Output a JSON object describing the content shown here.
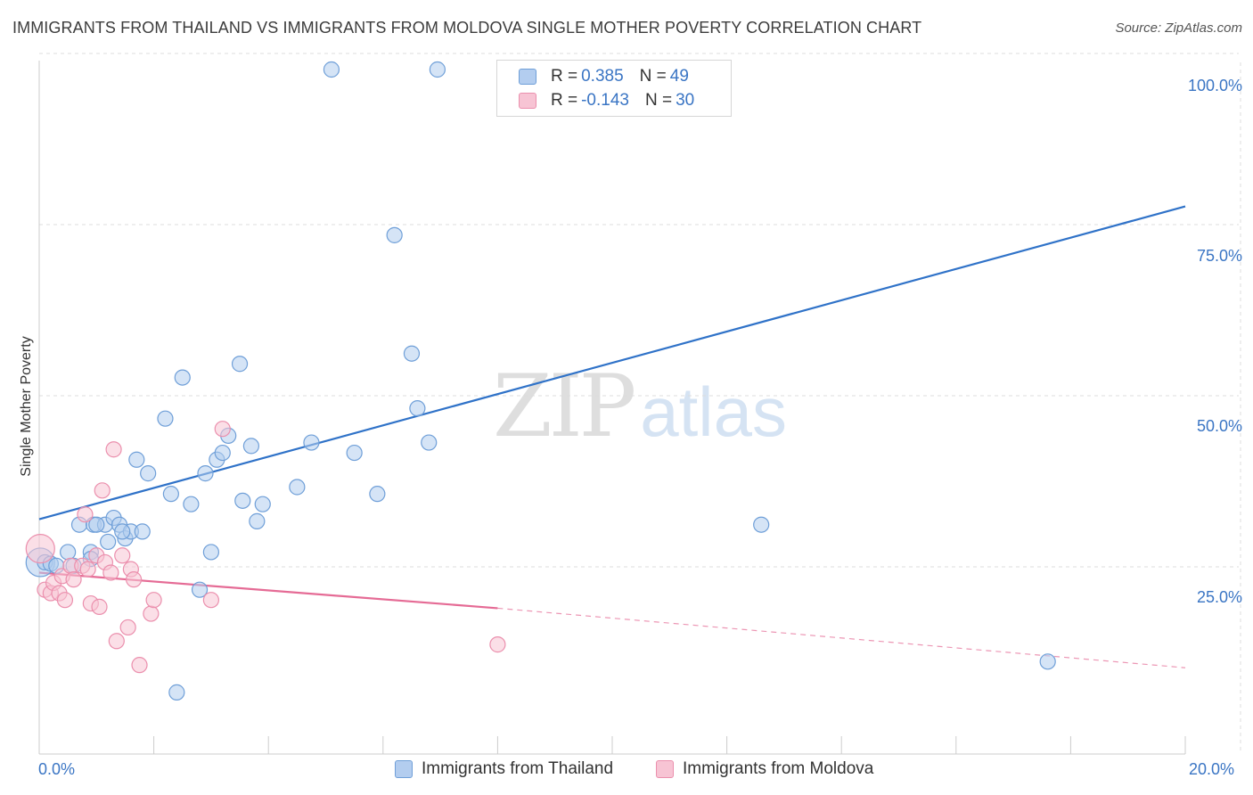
{
  "title": "IMMIGRANTS FROM THAILAND VS IMMIGRANTS FROM MOLDOVA SINGLE MOTHER POVERTY CORRELATION CHART",
  "source": "Source: ZipAtlas.com",
  "watermark": {
    "zip": "ZIP",
    "atlas": "atlas"
  },
  "legend": {
    "rows": [
      {
        "r_label": "R =",
        "r_value": "0.385",
        "n_label": "N =",
        "n_value": "49"
      },
      {
        "r_label": "R =",
        "r_value": "-0.143",
        "n_label": "N =",
        "n_value": "30"
      }
    ]
  },
  "colors": {
    "thailand_fill": "#b3cdef",
    "thailand_stroke": "#6f9fd8",
    "thailand_line": "#2f72c8",
    "moldova_fill": "#f7c4d4",
    "moldova_stroke": "#eb8fad",
    "moldova_line": "#e56b95",
    "grid": "#dcdcdc",
    "tick_text": "#3a75c4"
  },
  "chart_data": {
    "type": "scatter",
    "title": "IMMIGRANTS FROM THAILAND VS IMMIGRANTS FROM MOLDOVA SINGLE MOTHER POVERTY CORRELATION CHART",
    "xlabel": "",
    "ylabel": "Single Mother Poverty",
    "xlim": [
      0,
      20
    ],
    "ylim": [
      0,
      100
    ],
    "x_tick_labels": [
      "0.0%",
      "20.0%"
    ],
    "y_ticks": [
      25,
      50,
      75,
      100
    ],
    "y_tick_labels": [
      "25.0%",
      "50.0%",
      "75.0%",
      "100.0%"
    ],
    "grid": true,
    "series": [
      {
        "name": "Immigrants from Thailand",
        "r": 0.385,
        "n": 49,
        "points": [
          [
            0.02,
            28.0,
            "large"
          ],
          [
            0.1,
            28.0
          ],
          [
            0.2,
            27.8
          ],
          [
            0.5,
            29.5
          ],
          [
            0.9,
            29.5
          ],
          [
            0.7,
            33.5
          ],
          [
            0.95,
            33.5
          ],
          [
            1.15,
            33.5
          ],
          [
            1.3,
            34.5
          ],
          [
            1.4,
            33.5
          ],
          [
            1.2,
            31.0
          ],
          [
            1.5,
            31.5
          ],
          [
            1.6,
            32.5
          ],
          [
            1.8,
            32.5
          ],
          [
            1.9,
            41.0
          ],
          [
            1.7,
            43.0
          ],
          [
            2.2,
            49.0
          ],
          [
            2.3,
            38.0
          ],
          [
            2.5,
            55.0
          ],
          [
            2.65,
            36.5
          ],
          [
            2.9,
            41.0
          ],
          [
            3.1,
            43.0
          ],
          [
            3.2,
            44.0
          ],
          [
            3.3,
            46.5
          ],
          [
            3.5,
            57.0
          ],
          [
            3.55,
            37.0
          ],
          [
            3.7,
            45.0
          ],
          [
            3.8,
            34.0
          ],
          [
            3.9,
            36.5
          ],
          [
            4.5,
            39.0
          ],
          [
            4.75,
            45.5
          ],
          [
            5.1,
            100.0
          ],
          [
            5.5,
            44.0
          ],
          [
            5.9,
            38.0
          ],
          [
            6.2,
            75.8
          ],
          [
            6.5,
            58.5
          ],
          [
            6.6,
            50.5
          ],
          [
            6.8,
            45.5
          ],
          [
            6.95,
            100.0
          ],
          [
            0.9,
            28.5
          ],
          [
            3.0,
            29.5
          ],
          [
            2.8,
            24.0
          ],
          [
            2.4,
            9.0
          ],
          [
            12.6,
            33.5
          ],
          [
            17.6,
            13.5
          ],
          [
            0.3,
            27.5
          ],
          [
            1.0,
            33.5
          ],
          [
            0.6,
            27.5
          ],
          [
            1.45,
            32.5
          ]
        ],
        "trend": {
          "x_start": 0,
          "y_start": 34.3,
          "x_end": 20,
          "y_end": 80.0
        }
      },
      {
        "name": "Immigrants from Moldova",
        "r": -0.143,
        "n": 30,
        "points": [
          [
            0.02,
            30.0,
            "large"
          ],
          [
            0.1,
            24.0
          ],
          [
            0.2,
            23.5
          ],
          [
            0.25,
            25.0
          ],
          [
            0.35,
            23.5
          ],
          [
            0.4,
            26.0
          ],
          [
            0.45,
            22.5
          ],
          [
            0.55,
            27.5
          ],
          [
            0.6,
            25.5
          ],
          [
            0.75,
            27.5
          ],
          [
            0.8,
            35.0
          ],
          [
            0.85,
            27.0
          ],
          [
            0.9,
            22.0
          ],
          [
            1.0,
            29.0
          ],
          [
            1.05,
            21.5
          ],
          [
            1.1,
            38.5
          ],
          [
            1.15,
            28.0
          ],
          [
            1.25,
            26.5
          ],
          [
            1.3,
            44.5
          ],
          [
            1.35,
            16.5
          ],
          [
            1.45,
            29.0
          ],
          [
            1.55,
            18.5
          ],
          [
            1.6,
            27.0
          ],
          [
            1.65,
            25.5
          ],
          [
            1.75,
            13.0
          ],
          [
            1.95,
            20.5
          ],
          [
            2.0,
            22.5
          ],
          [
            3.0,
            22.5
          ],
          [
            3.2,
            47.5
          ],
          [
            8.0,
            16.0
          ]
        ],
        "trend": {
          "x_start": 0,
          "y_start": 26.5,
          "x_end": 8.0,
          "y_end": 21.3,
          "dashed_to_x": 20,
          "dashed_to_y": 12.6
        }
      }
    ]
  }
}
